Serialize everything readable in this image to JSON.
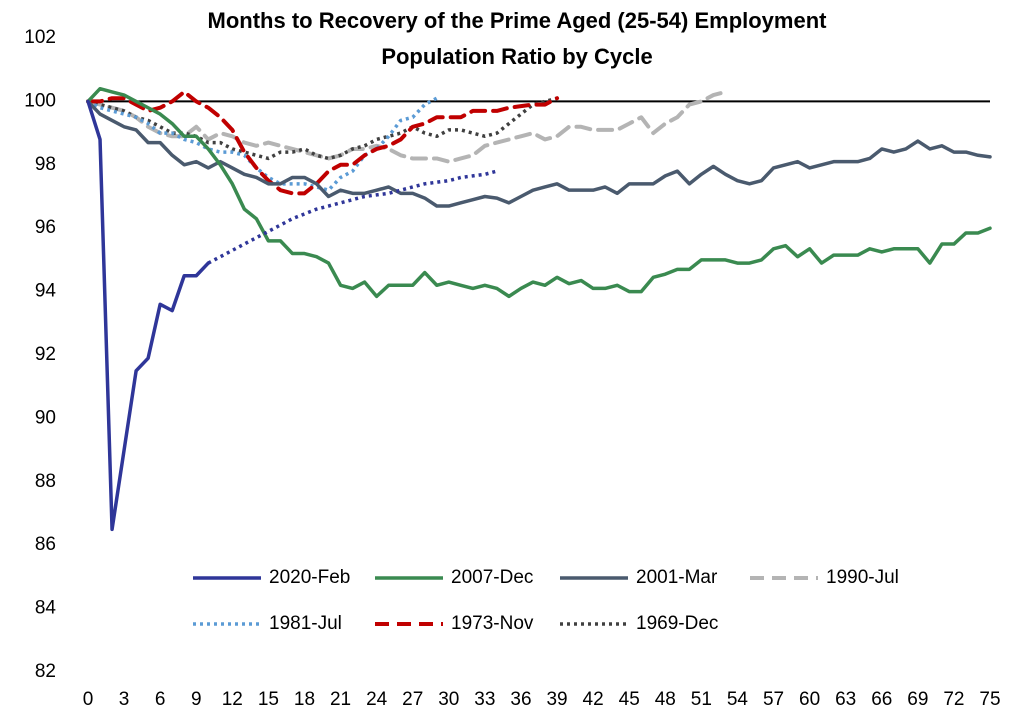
{
  "chart_data": {
    "type": "line",
    "title": [
      "Months to Recovery of the Prime Aged (25-54) Employment",
      "Population Ratio by Cycle"
    ],
    "x": [
      0,
      1,
      2,
      3,
      4,
      5,
      6,
      7,
      8,
      9,
      10,
      11,
      12,
      13,
      14,
      15,
      16,
      17,
      18,
      19,
      20,
      21,
      22,
      23,
      24,
      25,
      26,
      27,
      28,
      29,
      30,
      31,
      32,
      33,
      34,
      35,
      36,
      37,
      38,
      39,
      40,
      41,
      42,
      43,
      44,
      45,
      46,
      47,
      48,
      49,
      50,
      51,
      52,
      53,
      54,
      55,
      56,
      57,
      58,
      59,
      60,
      61,
      62,
      63,
      64,
      65,
      66,
      67,
      68,
      69,
      70,
      71,
      72,
      73,
      74,
      75
    ],
    "xlim": [
      0,
      75
    ],
    "xticks": [
      0,
      3,
      6,
      9,
      12,
      15,
      18,
      21,
      24,
      27,
      30,
      33,
      36,
      39,
      42,
      45,
      48,
      51,
      54,
      57,
      60,
      63,
      66,
      69,
      72,
      75
    ],
    "ylim": [
      82,
      102
    ],
    "yticks": [
      82,
      84,
      86,
      88,
      90,
      92,
      94,
      96,
      98,
      100,
      102
    ],
    "reference_line": 100,
    "grid": false,
    "legend": "lower center",
    "series": [
      {
        "name": "2020-Feb",
        "color": "#2f3699",
        "style": "solid",
        "values": [
          100,
          98.8,
          86.5,
          89.0,
          91.5,
          91.9,
          93.6,
          93.4,
          94.5,
          94.5,
          94.9,
          null,
          null,
          null,
          null,
          null,
          null,
          null,
          null,
          null,
          null,
          null,
          null,
          null,
          null,
          null,
          null,
          null,
          null,
          null,
          null,
          null,
          null,
          null,
          null,
          null,
          null,
          null,
          null,
          null,
          null,
          null,
          null,
          null,
          null,
          null,
          null,
          null,
          null,
          null,
          null,
          null,
          null,
          null,
          null,
          null,
          null,
          null,
          null,
          null,
          null,
          null,
          null,
          null,
          null,
          null,
          null,
          null,
          null,
          null,
          null,
          null,
          null,
          null,
          null,
          null
        ]
      },
      {
        "name": "2007-Dec",
        "color": "#3a8a50",
        "style": "solid",
        "values": [
          100,
          100.4,
          100.3,
          100.2,
          100.0,
          99.8,
          99.6,
          99.3,
          98.9,
          98.9,
          98.5,
          98.0,
          97.4,
          96.6,
          96.3,
          95.6,
          95.6,
          95.2,
          95.2,
          95.1,
          94.9,
          94.2,
          94.1,
          94.3,
          93.85,
          94.2,
          94.2,
          94.2,
          94.6,
          94.2,
          94.3,
          94.2,
          94.1,
          94.2,
          94.1,
          93.85,
          94.1,
          94.3,
          94.2,
          94.45,
          94.25,
          94.35,
          94.1,
          94.1,
          94.2,
          94.0,
          94.0,
          94.45,
          94.55,
          94.7,
          94.7,
          95.0,
          95.0,
          95.0,
          94.9,
          94.9,
          95.0,
          95.35,
          95.45,
          95.1,
          95.35,
          94.9,
          95.15,
          95.15,
          95.15,
          95.35,
          95.25,
          95.35,
          95.35,
          95.35,
          94.9,
          95.5,
          95.5,
          95.85,
          95.85,
          96.0
        ]
      },
      {
        "name": "2001-Mar",
        "color": "#4a5a6e",
        "style": "solid",
        "values": [
          100,
          99.6,
          99.4,
          99.2,
          99.1,
          98.7,
          98.7,
          98.3,
          98.0,
          98.1,
          97.9,
          98.1,
          97.9,
          97.7,
          97.6,
          97.4,
          97.4,
          97.6,
          97.6,
          97.4,
          97.0,
          97.2,
          97.1,
          97.1,
          97.2,
          97.3,
          97.1,
          97.1,
          96.95,
          96.7,
          96.7,
          96.8,
          96.9,
          97.0,
          96.95,
          96.8,
          97.0,
          97.2,
          97.3,
          97.4,
          97.2,
          97.2,
          97.2,
          97.3,
          97.1,
          97.4,
          97.4,
          97.4,
          97.65,
          97.8,
          97.4,
          97.7,
          97.95,
          97.7,
          97.5,
          97.4,
          97.5,
          97.9,
          98.0,
          98.1,
          97.9,
          98.0,
          98.1,
          98.1,
          98.1,
          98.2,
          98.5,
          98.4,
          98.5,
          98.75,
          98.5,
          98.6,
          98.4,
          98.4,
          98.3,
          98.25
        ]
      },
      {
        "name": "1990-Jul",
        "color": "#b4b4b4",
        "style": "dashed",
        "values": [
          100,
          99.9,
          99.8,
          99.7,
          99.5,
          99.2,
          99.0,
          98.9,
          98.9,
          99.2,
          98.8,
          99.0,
          98.9,
          98.7,
          98.6,
          98.7,
          98.6,
          98.5,
          98.4,
          98.3,
          98.2,
          98.3,
          98.5,
          98.5,
          98.6,
          98.5,
          98.3,
          98.2,
          98.2,
          98.2,
          98.1,
          98.2,
          98.3,
          98.6,
          98.7,
          98.8,
          98.9,
          99.0,
          98.8,
          98.9,
          99.2,
          99.2,
          99.1,
          99.1,
          99.1,
          99.3,
          99.5,
          99.0,
          99.3,
          99.5,
          99.9,
          100.0,
          100.2,
          100.3,
          null,
          null,
          null,
          null,
          null,
          null,
          null,
          null,
          null,
          null,
          null,
          null,
          null,
          null,
          null,
          null,
          null,
          null,
          null,
          null,
          null,
          null
        ]
      },
      {
        "name": "1981-Jul",
        "color": "#5b9bd5",
        "style": "dotted",
        "values": [
          100,
          99.8,
          99.7,
          99.6,
          99.5,
          99.3,
          99.0,
          99.0,
          98.8,
          98.7,
          98.5,
          98.4,
          98.4,
          98.3,
          97.9,
          97.6,
          97.4,
          97.4,
          97.4,
          97.3,
          97.2,
          97.6,
          97.8,
          98.3,
          98.5,
          98.9,
          99.4,
          99.5,
          99.9,
          100.1,
          null,
          null,
          null,
          null,
          null,
          null,
          null,
          null,
          null,
          null,
          null,
          null,
          null,
          null,
          null,
          null,
          null,
          null,
          null,
          null,
          null,
          null,
          null,
          null,
          null,
          null,
          null,
          null,
          null,
          null,
          null,
          null,
          null,
          null,
          null,
          null,
          null,
          null,
          null,
          null,
          null,
          null,
          null,
          null,
          null,
          null
        ]
      },
      {
        "name": "1973-Nov",
        "color": "#c00000",
        "style": "dashed",
        "values": [
          100,
          100.0,
          100.1,
          100.1,
          99.9,
          99.7,
          99.8,
          100.0,
          100.3,
          100.0,
          99.8,
          99.5,
          99.1,
          98.4,
          97.9,
          97.5,
          97.2,
          97.1,
          97.1,
          97.4,
          97.8,
          98.0,
          98.0,
          98.3,
          98.5,
          98.6,
          98.8,
          99.2,
          99.3,
          99.5,
          99.5,
          99.5,
          99.7,
          99.7,
          99.7,
          99.8,
          99.85,
          99.9,
          99.9,
          100.1,
          null,
          null,
          null,
          null,
          null,
          null,
          null,
          null,
          null,
          null,
          null,
          null,
          null,
          null,
          null,
          null,
          null,
          null,
          null,
          null,
          null,
          null,
          null,
          null,
          null,
          null,
          null,
          null,
          null,
          null,
          null,
          null,
          null,
          null,
          null,
          null
        ]
      },
      {
        "name": "1969-Dec",
        "color": "#404040",
        "style": "dotted",
        "values": [
          100,
          99.9,
          99.8,
          99.7,
          99.5,
          99.4,
          99.2,
          99.0,
          99.0,
          98.9,
          98.7,
          98.7,
          98.5,
          98.4,
          98.3,
          98.2,
          98.4,
          98.4,
          98.5,
          98.3,
          98.2,
          98.3,
          98.5,
          98.6,
          98.8,
          98.9,
          99.0,
          99.2,
          99.0,
          98.9,
          99.1,
          99.1,
          99.0,
          98.9,
          99.0,
          99.3,
          99.6,
          99.9,
          100.0,
          100.1,
          null,
          null,
          null,
          null,
          null,
          null,
          null,
          null,
          null,
          null,
          null,
          null,
          null,
          null,
          null,
          null,
          null,
          null,
          null,
          null,
          null,
          null,
          null,
          null,
          null,
          null,
          null,
          null,
          null,
          null,
          null,
          null,
          null,
          null,
          null,
          null
        ]
      }
    ],
    "projection": {
      "color": "#2f3699",
      "style": "dotted",
      "values": [
        null,
        null,
        null,
        null,
        null,
        null,
        null,
        null,
        null,
        null,
        94.9,
        95.1,
        95.3,
        95.5,
        95.7,
        95.9,
        96.1,
        96.3,
        96.45,
        96.6,
        96.7,
        96.8,
        96.9,
        97.0,
        97.05,
        97.1,
        97.2,
        97.3,
        97.4,
        97.45,
        97.5,
        97.6,
        97.65,
        97.7,
        97.8,
        null,
        null,
        null,
        null,
        null,
        null,
        null,
        null,
        null,
        null,
        null,
        null,
        null,
        null,
        null,
        null,
        null,
        null,
        null,
        null,
        null,
        null,
        null,
        null,
        null,
        null,
        null,
        null,
        null,
        null,
        null,
        null,
        null,
        null,
        null,
        null,
        null,
        null,
        null,
        null,
        null
      ]
    }
  }
}
